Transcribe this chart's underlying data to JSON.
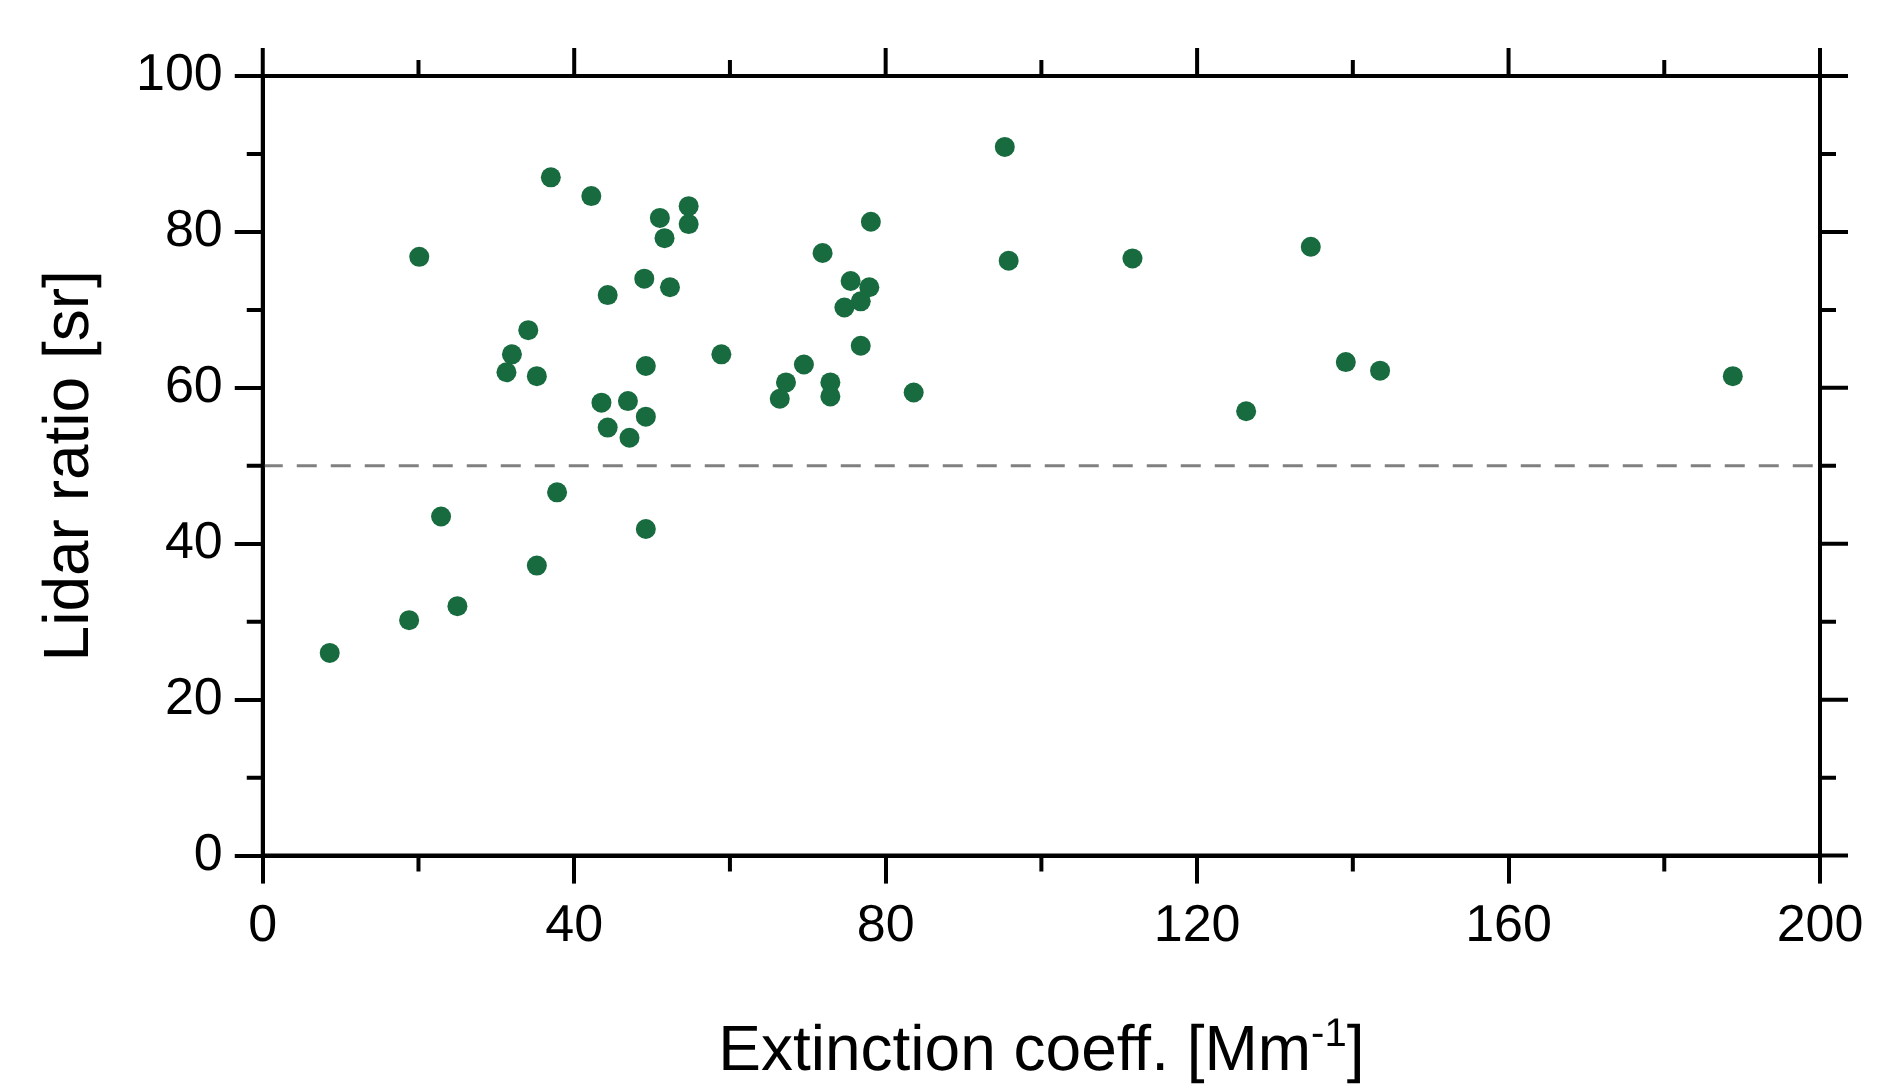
{
  "chart_data": {
    "type": "scatter",
    "xlabel": "Extinction coeff. [Mm$^{-1}$]",
    "ylabel": "Lidar ratio [sr]",
    "xlim": [
      0,
      200
    ],
    "xticks": [
      0,
      40,
      80,
      120,
      160,
      200
    ],
    "ylim": [
      0,
      100
    ],
    "yticks": [
      0,
      20,
      40,
      60,
      80,
      100
    ],
    "grid": false,
    "legend": false,
    "marker": "circle",
    "ref_lines": [
      {
        "axis": "y",
        "value": 50,
        "color": "#808080",
        "line_style": "dashed"
      }
    ],
    "series": [
      {
        "color": "#176b3f",
        "x": [
          8.6,
          18.8,
          25.0,
          22.9,
          20.1,
          35.2,
          37.8,
          49.2,
          31.3,
          32.0,
          34.1,
          35.2,
          37.0,
          42.2,
          44.3,
          51.0,
          54.7,
          54.7,
          51.6,
          49.0,
          52.3,
          49.2,
          43.5,
          46.9,
          44.3,
          47.1,
          49.2,
          58.9,
          95.3,
          78.1,
          71.9,
          75.5,
          77.9,
          76.8,
          74.7,
          76.8,
          69.5,
          67.2,
          66.4,
          72.9,
          72.9,
          83.6,
          95.8,
          111.7,
          134.6,
          139.1,
          126.3,
          188.8,
          143.5
        ],
        "values": [
          26.0,
          30.2,
          32.0,
          43.5,
          76.8,
          37.2,
          46.6,
          41.9,
          62.0,
          64.3,
          67.4,
          61.5,
          87.0,
          84.6,
          71.9,
          81.8,
          83.3,
          81.0,
          79.2,
          74.0,
          72.9,
          62.8,
          58.1,
          58.3,
          54.9,
          53.6,
          56.3,
          64.3,
          90.9,
          81.3,
          77.3,
          73.7,
          72.9,
          71.1,
          70.3,
          65.4,
          63.0,
          60.7,
          58.6,
          60.7,
          58.9,
          59.4,
          76.3,
          76.6,
          78.1,
          63.3,
          57.0,
          61.5,
          62.2
        ]
      }
    ]
  }
}
